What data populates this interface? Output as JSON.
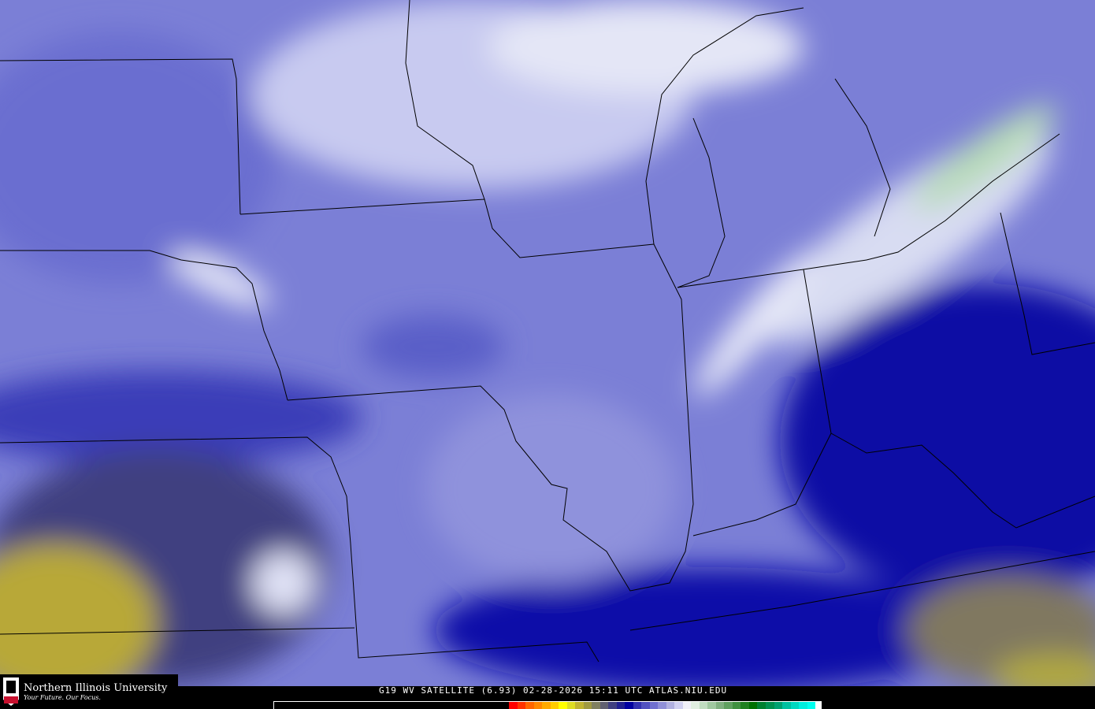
{
  "map": {
    "product": "WV satellite water vapor imagery, central United States",
    "colors": {
      "clear_dry": "#0000a0",
      "moist": "#8c8fdc",
      "very_moist": "#d8daf2",
      "cold_tops": "#a8d0a8",
      "dry_yellow": "#c8b830"
    }
  },
  "caption": "G19 WV SATELLITE (6.93) 02-28-2026 15:11 UTC  ATLAS.NIU.EDU",
  "logo": {
    "name": "Northern Illinois University",
    "tagline": "Your Future. Our Focus.",
    "mark": "NIU"
  },
  "colorbar": [
    "#ff0000",
    "#ff3300",
    "#ff6600",
    "#ff8800",
    "#ffaa00",
    "#ffcc00",
    "#ffff00",
    "#dddd22",
    "#c0b430",
    "#a09a40",
    "#808060",
    "#606070",
    "#404080",
    "#202090",
    "#0000a0",
    "#3030b0",
    "#5050c0",
    "#7070d0",
    "#9090d8",
    "#b0b0e0",
    "#d0d0f0",
    "#f0f0f8",
    "#e0eee0",
    "#c0ddc0",
    "#a0c8a0",
    "#80b080",
    "#60a060",
    "#409040",
    "#208020",
    "#007000",
    "#008030",
    "#009050",
    "#00a070",
    "#00c0a0",
    "#00d8c0",
    "#00eedd",
    "#00ffee"
  ]
}
